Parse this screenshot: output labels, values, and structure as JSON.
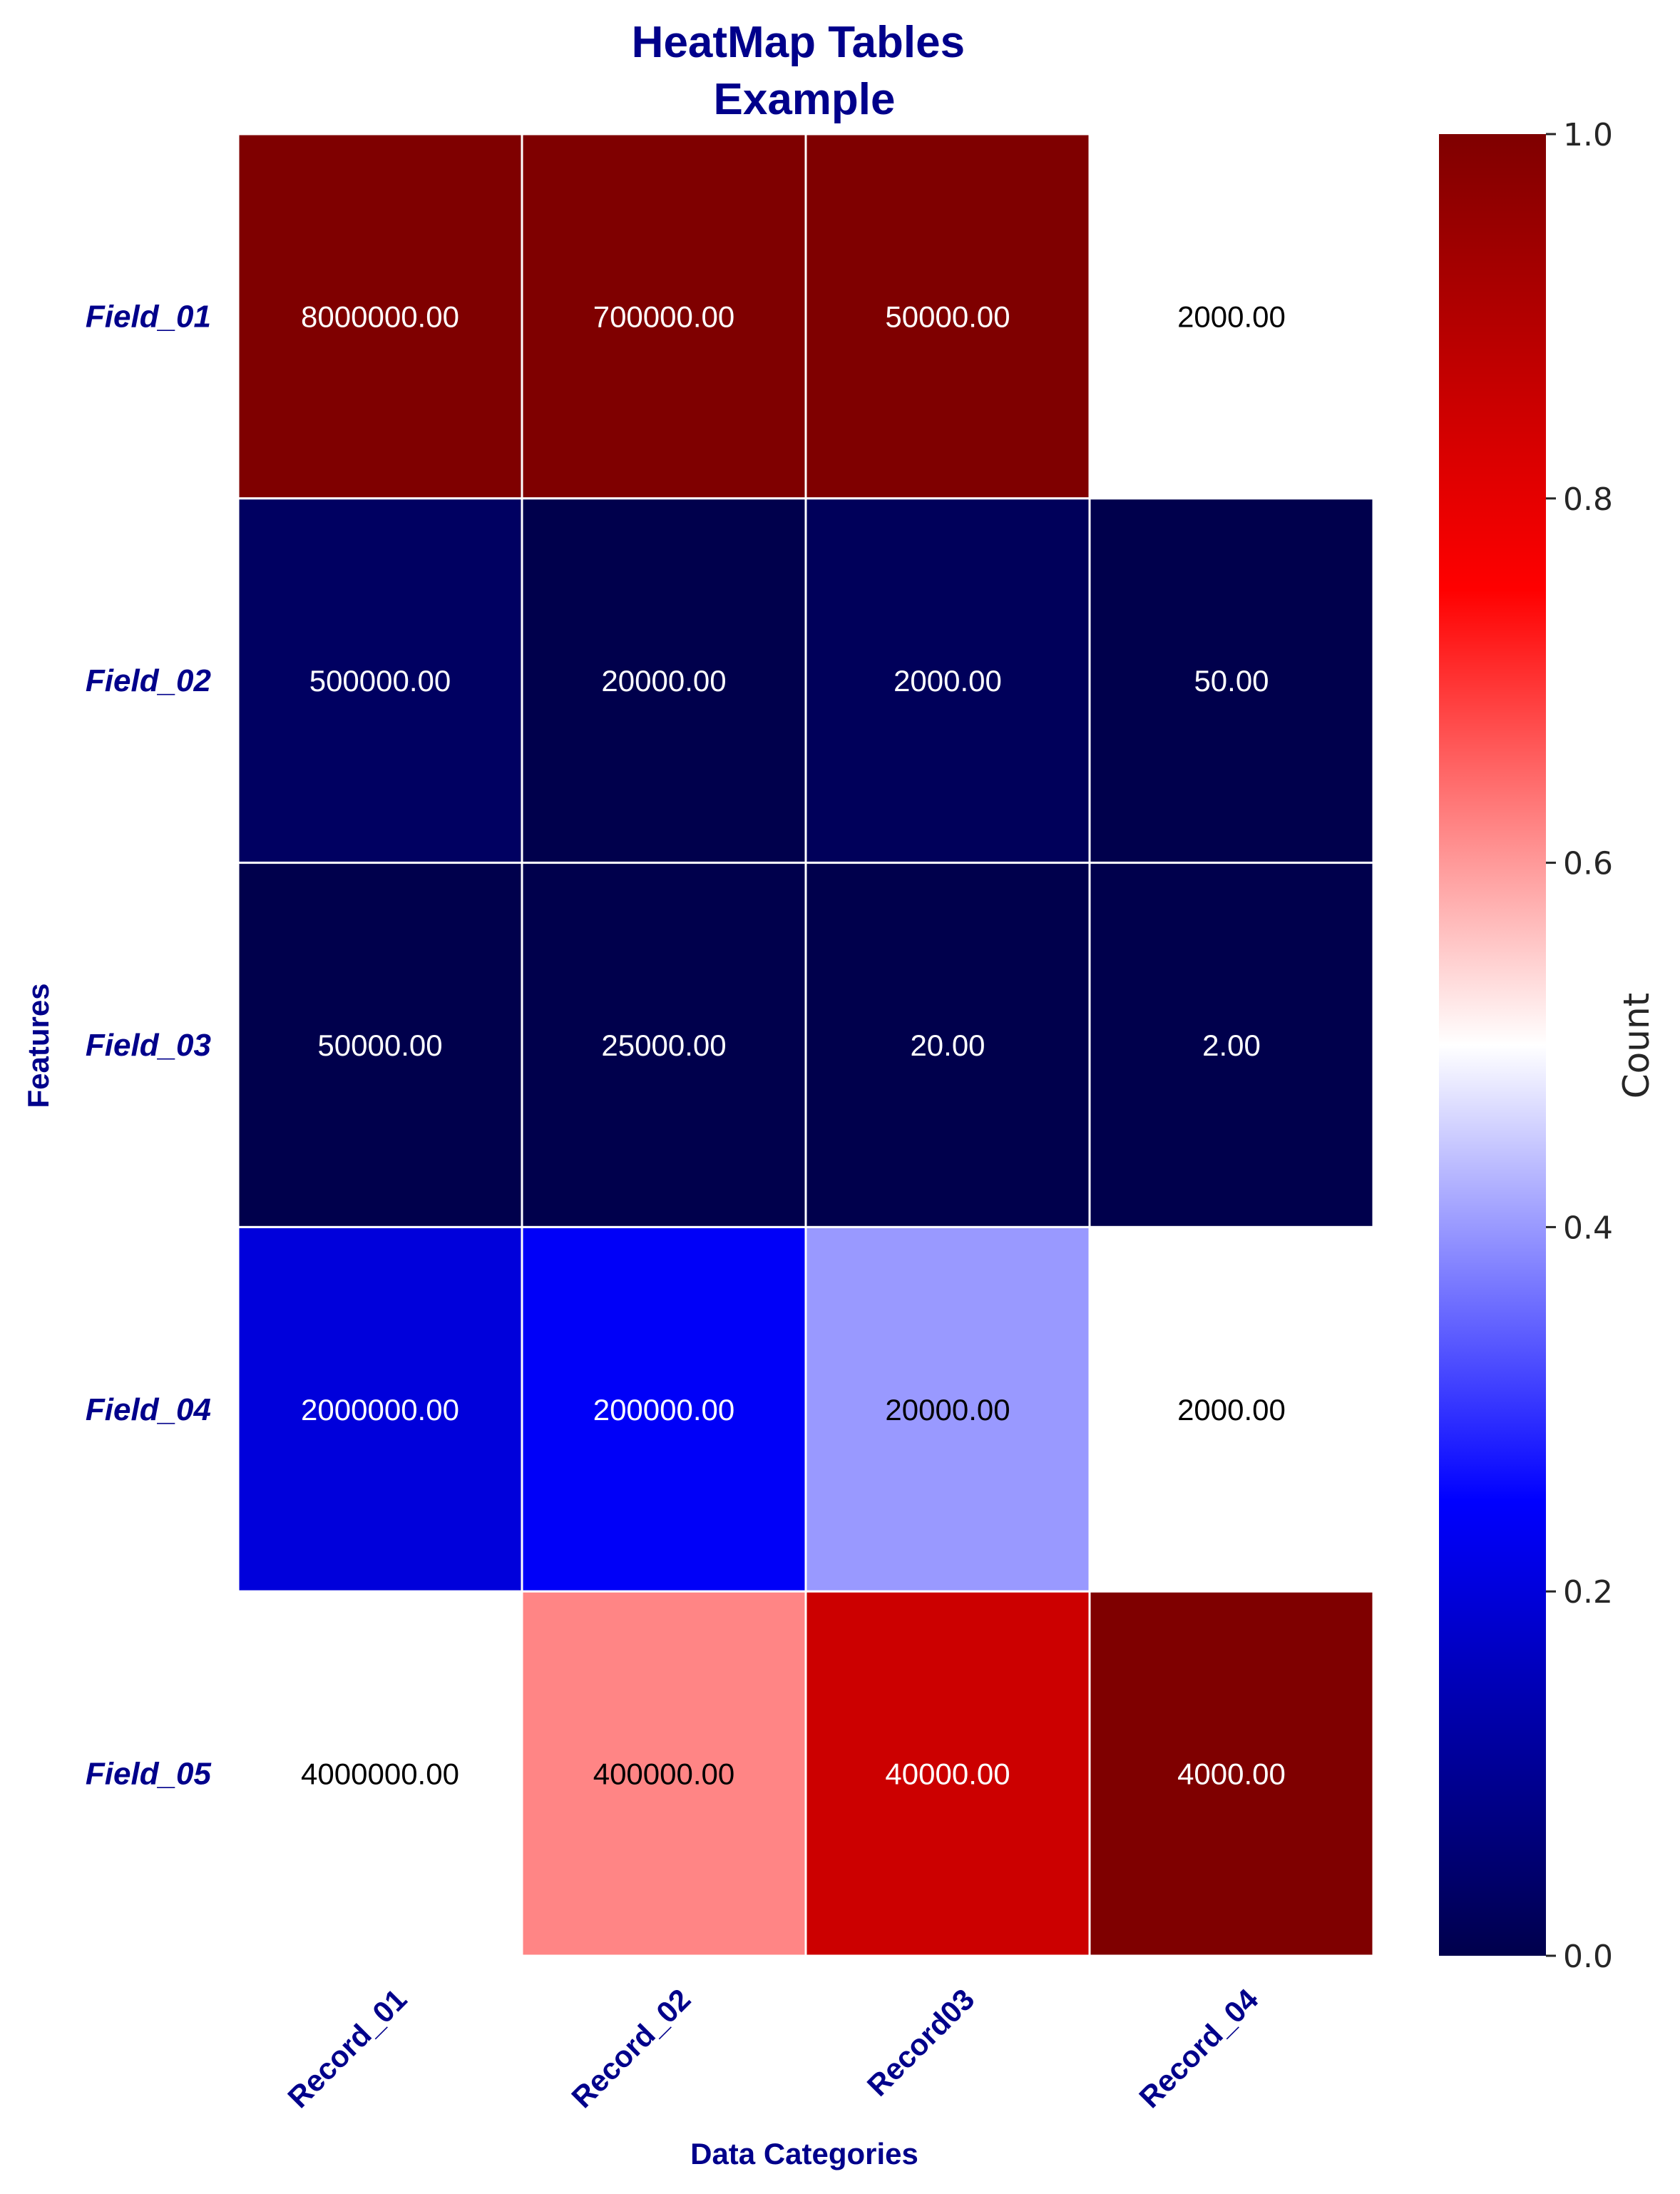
{
  "chart_data": {
    "type": "heatmap",
    "title": "HeatMap Tables\nExample",
    "xlabel": "Data Categories",
    "ylabel": "Features",
    "x_categories": [
      "Record_01",
      "Record_02",
      "Record03",
      "Record_04"
    ],
    "y_categories": [
      "Field_01",
      "Field_02",
      "Field_03",
      "Field_04",
      "Field_05"
    ],
    "cell_labels": [
      [
        "8000000.00",
        "700000.00",
        "50000.00",
        "2000.00"
      ],
      [
        "500000.00",
        "20000.00",
        "2000.00",
        "50.00"
      ],
      [
        "50000.00",
        "25000.00",
        "20.00",
        "2.00"
      ],
      [
        "2000000.00",
        "200000.00",
        "20000.00",
        "2000.00"
      ],
      [
        "4000000.00",
        "400000.00",
        "40000.00",
        "4000.00"
      ]
    ],
    "color_values": [
      [
        1.0,
        1.0,
        1.0,
        0.5
      ],
      [
        0.03,
        0.0,
        0.02,
        0.0
      ],
      [
        0.0,
        0.0,
        0.0,
        0.0
      ],
      [
        0.2,
        0.24,
        0.4,
        0.5
      ],
      [
        0.5,
        0.62,
        0.85,
        1.0
      ]
    ],
    "colorbar": {
      "label": "Count",
      "range": [
        0.0,
        1.0
      ],
      "ticks": [
        "0.0",
        "0.2",
        "0.4",
        "0.6",
        "0.8",
        "1.0"
      ],
      "colormap": "seismic"
    },
    "colors": {
      "title": "#00008b",
      "labels": "#00008b",
      "cell_border": "#ffffff"
    }
  }
}
